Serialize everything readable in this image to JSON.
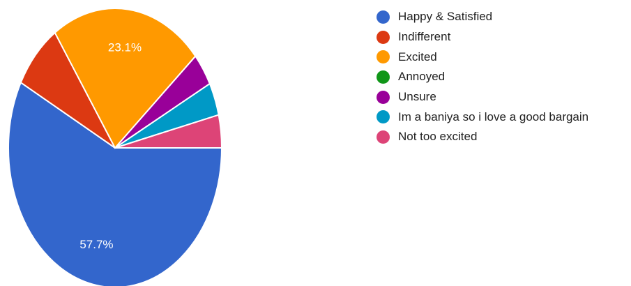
{
  "chart_data": {
    "type": "pie",
    "legend_position": "right",
    "slices": [
      {
        "label": "Happy & Satisfied",
        "value": 57.7,
        "value_label": "57.7%",
        "color": "#3366cc"
      },
      {
        "label": "Indifferent",
        "value": 7.7,
        "value_label": "",
        "color": "#dc3912"
      },
      {
        "label": "Excited",
        "value": 23.1,
        "value_label": "23.1%",
        "color": "#ff9900"
      },
      {
        "label": "Annoyed",
        "value": 0,
        "value_label": "",
        "color": "#109618"
      },
      {
        "label": "Unsure",
        "value": 3.8,
        "value_label": "",
        "color": "#990099"
      },
      {
        "label": "Im a baniya so i love a good bargain",
        "value": 3.8,
        "value_label": "",
        "color": "#0099c6"
      },
      {
        "label": "Not too excited",
        "value": 3.8,
        "value_label": "",
        "color": "#dd4477"
      }
    ]
  }
}
